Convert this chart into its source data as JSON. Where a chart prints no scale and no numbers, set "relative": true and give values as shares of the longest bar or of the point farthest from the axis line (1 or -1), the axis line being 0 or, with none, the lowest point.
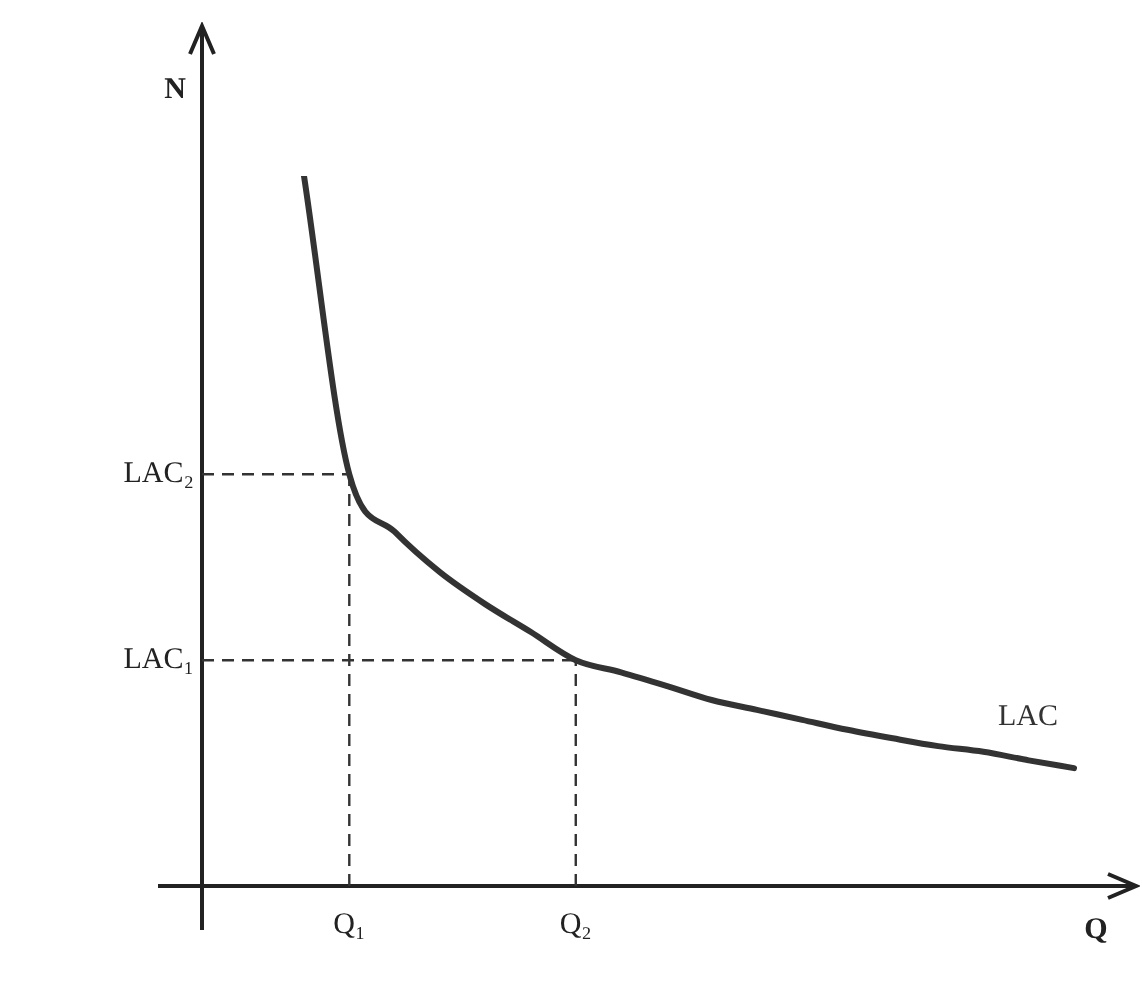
{
  "chart_data": {
    "type": "line",
    "relative": true,
    "xlabel": "Q",
    "ylabel": "N",
    "marker": "none",
    "line_style": "solid",
    "legend": false,
    "categories": [
      null,
      "Q₁",
      null,
      null,
      null,
      null,
      "Q₂",
      null,
      null,
      null,
      null,
      null,
      null,
      null,
      null,
      null,
      null,
      null
    ],
    "series": [
      {
        "name": "LAC",
        "color": "#333333",
        "values": [
          1,
          0.58,
          0.499,
          0.442,
          0.397,
          0.358,
          0.318,
          0.301,
          0.282,
          0.262,
          0.248,
          0.234,
          0.22,
          0.208,
          0.197,
          0.189,
          0.177,
          0.166
        ]
      }
    ],
    "ref_lines": [
      {
        "axis": "x",
        "value": "Q₁",
        "line_style": "dashed",
        "color": "#333333"
      },
      {
        "axis": "x",
        "value": "Q₂",
        "line_style": "dashed",
        "color": "#333333"
      },
      {
        "axis": "y",
        "value": 0.58,
        "label": "LAC₂",
        "line_style": "dashed",
        "color": "#333333"
      },
      {
        "axis": "y",
        "value": 0.318,
        "label": "LAC₁",
        "line_style": "dashed",
        "color": "#333333"
      }
    ]
  }
}
